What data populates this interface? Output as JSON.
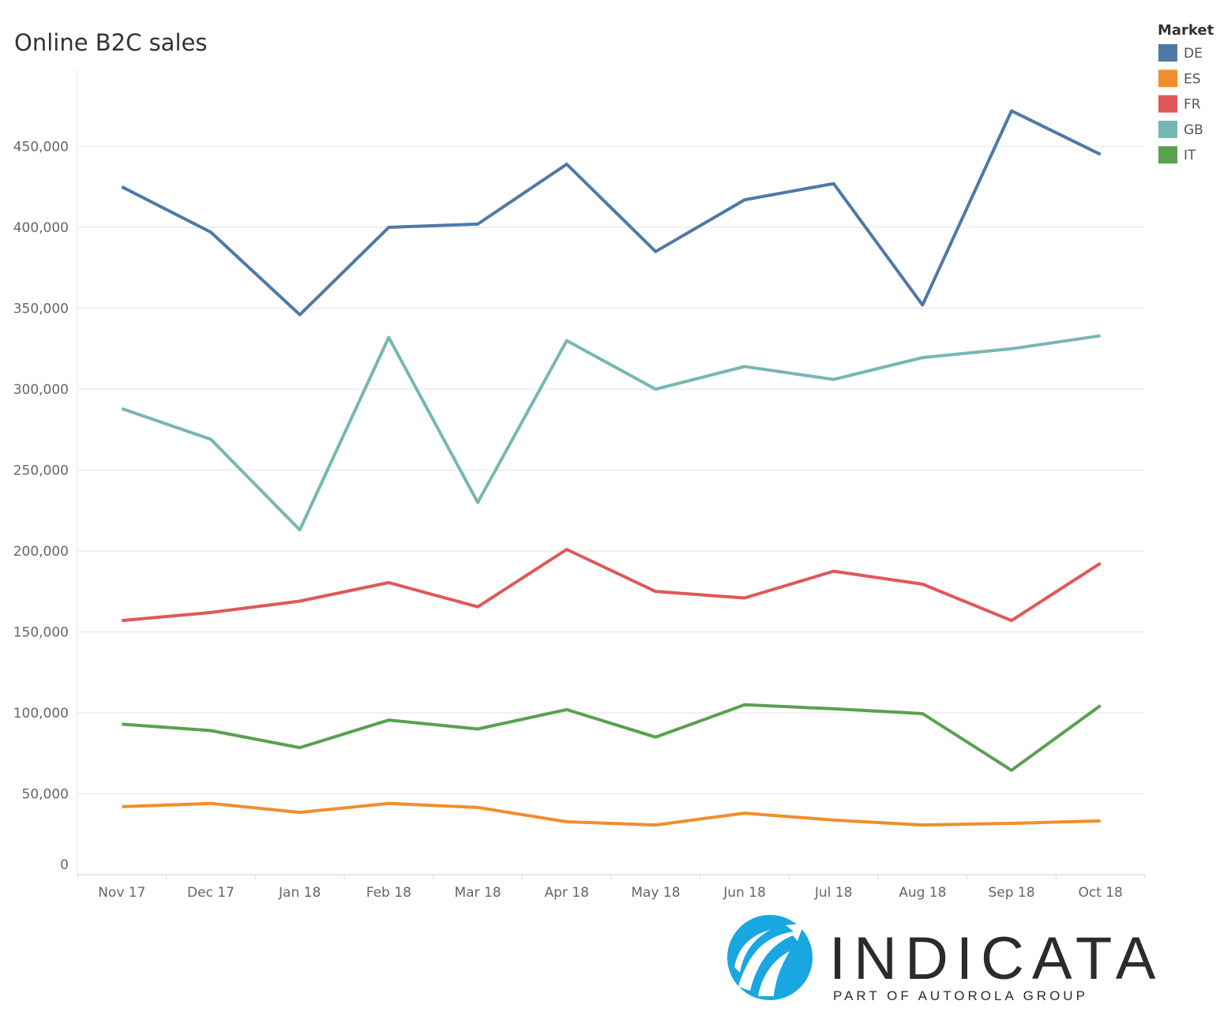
{
  "chart_data": {
    "type": "line",
    "title": "Online B2C sales",
    "xlabel": "",
    "ylabel": "",
    "ylim": [
      0,
      500000
    ],
    "yticks": [
      0,
      50000,
      100000,
      150000,
      200000,
      250000,
      300000,
      350000,
      400000,
      450000
    ],
    "ytick_labels": [
      "0",
      "50,000",
      "100,000",
      "150,000",
      "200,000",
      "250,000",
      "300,000",
      "350,000",
      "400,000",
      "450,000"
    ],
    "grid": true,
    "categories": [
      "Nov 17",
      "Dec 17",
      "Jan 18",
      "Feb 18",
      "Mar 18",
      "Apr 18",
      "May 18",
      "Jun 18",
      "Jul 18",
      "Aug 18",
      "Sep 18",
      "Oct 18"
    ],
    "legend": {
      "title": "Market",
      "placement": "top-right"
    },
    "series": [
      {
        "name": "DE",
        "color": "#4e79a7",
        "values": [
          425000,
          397000,
          346000,
          400000,
          402000,
          439000,
          385000,
          417000,
          427000,
          352000,
          472000,
          445000
        ]
      },
      {
        "name": "ES",
        "color": "#f28e2b",
        "values": [
          42000,
          44000,
          38500,
          44000,
          41500,
          32700,
          30700,
          38000,
          33700,
          30700,
          31700,
          33200
        ]
      },
      {
        "name": "FR",
        "color": "#e15759",
        "values": [
          157000,
          162000,
          169000,
          180500,
          165500,
          201000,
          175000,
          171000,
          187500,
          179500,
          157000,
          192500
        ]
      },
      {
        "name": "GB",
        "color": "#76b7b2",
        "values": [
          288000,
          269000,
          213000,
          332000,
          230000,
          330000,
          300000,
          314000,
          306000,
          319500,
          325000,
          333000
        ]
      },
      {
        "name": "IT",
        "color": "#59a14f",
        "values": [
          93000,
          89000,
          78500,
          95500,
          90000,
          102000,
          85000,
          105000,
          102500,
          99500,
          64500,
          104500
        ]
      }
    ]
  },
  "logo": {
    "name": "INDICATA",
    "tagline": "PART OF AUTOROLA GROUP",
    "color": "#1aa6e0"
  }
}
